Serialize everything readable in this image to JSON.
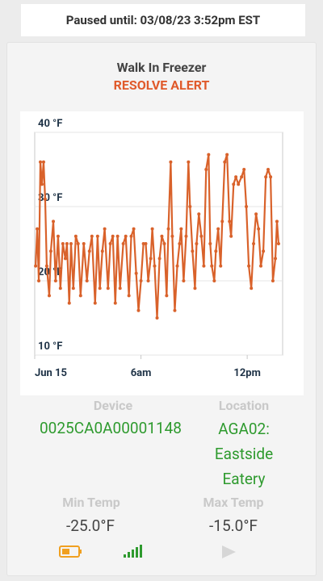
{
  "header": {
    "paused": "Paused until: 03/08/23 3:52pm EST"
  },
  "card": {
    "title": "Walk In Freezer",
    "action": "RESOLVE ALERT"
  },
  "chart_data": {
    "type": "line",
    "xlim": [
      0,
      14
    ],
    "xticks": [
      {
        "value": 0,
        "label": "Jun 15"
      },
      {
        "value": 6,
        "label": "6am"
      },
      {
        "value": 12,
        "label": "12pm"
      }
    ],
    "ylim": [
      10,
      40
    ],
    "yticks": [
      {
        "value": 10,
        "label": "10 °F"
      },
      {
        "value": 20,
        "label": "20 °F"
      },
      {
        "value": 30,
        "label": "30 °F"
      },
      {
        "value": 40,
        "label": "40 °F"
      }
    ],
    "grid": true,
    "series": [
      {
        "color": "#d9622b",
        "x": [
          0.05,
          0.14,
          0.23,
          0.32,
          0.41,
          0.5,
          0.59,
          0.68,
          0.82,
          0.91,
          1.05,
          1.18,
          1.32,
          1.45,
          1.59,
          1.73,
          1.82,
          1.95,
          2.05,
          2.18,
          2.32,
          2.45,
          2.59,
          2.77,
          2.95,
          3.09,
          3.23,
          3.41,
          3.55,
          3.68,
          3.82,
          3.95,
          4.14,
          4.27,
          4.41,
          4.55,
          4.68,
          4.82,
          5,
          5.14,
          5.32,
          5.45,
          5.59,
          5.73,
          5.86,
          6,
          6.14,
          6.27,
          6.41,
          6.55,
          6.64,
          6.77,
          6.91,
          7.05,
          7.18,
          7.32,
          7.45,
          7.55,
          7.68,
          7.77,
          7.91,
          8.05,
          8.18,
          8.27,
          8.41,
          8.55,
          8.68,
          8.77,
          8.91,
          9.05,
          9.14,
          9.27,
          9.41,
          9.55,
          9.68,
          9.82,
          9.91,
          10,
          10.14,
          10.23,
          10.36,
          10.5,
          10.59,
          10.73,
          10.86,
          11,
          11.09,
          11.23,
          11.36,
          11.5,
          11.68,
          11.82,
          11.95,
          12.09,
          12.23,
          12.36,
          12.5,
          12.64,
          12.77,
          12.91,
          13.05,
          13.18,
          13.32,
          13.45,
          13.59,
          13.68,
          13.77
        ],
        "values": [
          22,
          27,
          20,
          36,
          33,
          36,
          31,
          22,
          18,
          24,
          28,
          20,
          26,
          19,
          25,
          23,
          25,
          17,
          25,
          19,
          26,
          25,
          18,
          25,
          20,
          24,
          26,
          17,
          26,
          19,
          24,
          27,
          19,
          25,
          26,
          17,
          26,
          19,
          25,
          26,
          18,
          26,
          27,
          21,
          16,
          20,
          25,
          25,
          20,
          23,
          27,
          22,
          15,
          23,
          26,
          25,
          18,
          27,
          36,
          26,
          16,
          22,
          25,
          27,
          20,
          26,
          36,
          30,
          24,
          19,
          25,
          29,
          26,
          22,
          35,
          37,
          25,
          22,
          20,
          24,
          27,
          22,
          28,
          36,
          37,
          28,
          26,
          33,
          34,
          33,
          34,
          35,
          30,
          22,
          19,
          25,
          29,
          27,
          22,
          24,
          34,
          35,
          34,
          20,
          23,
          28,
          25
        ]
      }
    ]
  },
  "details": {
    "device": {
      "label": "Device",
      "value": "0025CA0A00001148"
    },
    "location": {
      "label": "Location",
      "value": "AGA02: Eastside Eatery"
    },
    "min_temp": {
      "label": "Min Temp",
      "value": "-25.0°F"
    },
    "max_temp": {
      "label": "Max Temp",
      "value": "-15.0°F"
    }
  }
}
